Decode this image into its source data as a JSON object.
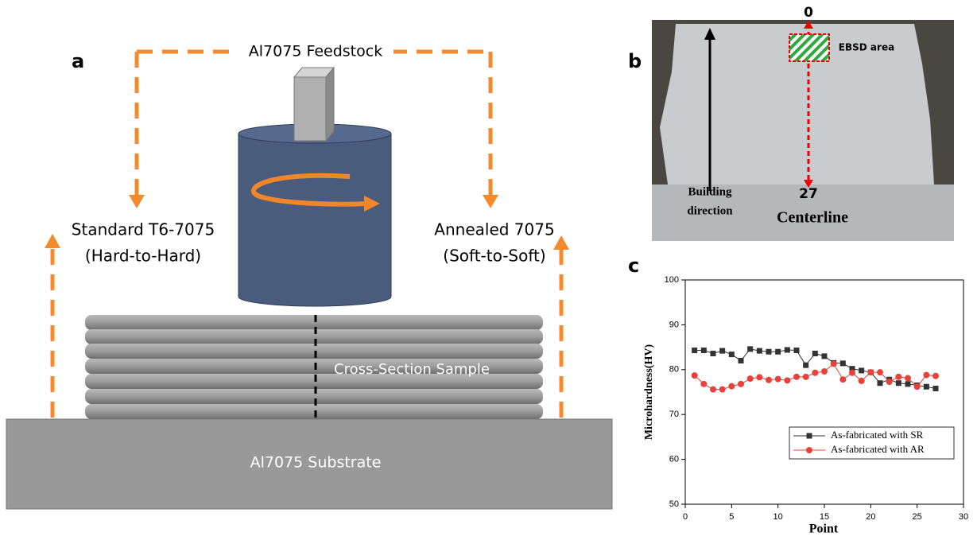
{
  "panel_a": {
    "label": "a",
    "feedstock": "Al7075 Feedstock",
    "left_label": [
      "Standard T6-7075",
      "(Hard-to-Hard)"
    ],
    "right_label": [
      "Annealed 7075",
      "(Soft-to-Soft)"
    ],
    "sample": "Cross-Section Sample",
    "substrate": "Al7075 Substrate"
  },
  "panel_b": {
    "label": "b",
    "top_mark": "0",
    "bottom_mark": "27",
    "ebsd": "EBSD area",
    "building_direction": [
      "Building",
      "direction"
    ],
    "centerline": "Centerline"
  },
  "chart_data": {
    "type": "line",
    "panel_label": "c",
    "xlabel": "Point",
    "ylabel": "Microhardness(HV)",
    "x": [
      1,
      2,
      3,
      4,
      5,
      6,
      7,
      8,
      9,
      10,
      11,
      12,
      13,
      14,
      15,
      16,
      17,
      18,
      19,
      20,
      21,
      22,
      23,
      24,
      25,
      26,
      27
    ],
    "xlim": [
      0,
      30
    ],
    "xticks": [
      0,
      5,
      10,
      15,
      20,
      25,
      30
    ],
    "ylim": [
      50,
      100
    ],
    "yticks": [
      50,
      60,
      70,
      80,
      90,
      100
    ],
    "legend": "lower right",
    "series": [
      {
        "name": "As-fabricated with SR",
        "color": "#333333",
        "marker": "square",
        "values": [
          84.3,
          84.3,
          83.6,
          84.2,
          83.4,
          82.0,
          84.6,
          84.2,
          84.0,
          84.0,
          84.4,
          84.3,
          81.0,
          83.6,
          83.0,
          81.5,
          81.4,
          80.2,
          79.8,
          79.4,
          77.0,
          77.8,
          77.0,
          76.8,
          76.5,
          76.2,
          75.8
        ]
      },
      {
        "name": "As-fabricated with AR",
        "color": "#e8413a",
        "marker": "circle",
        "values": [
          78.7,
          76.8,
          75.6,
          75.6,
          76.3,
          76.8,
          78.0,
          78.3,
          77.7,
          77.9,
          77.6,
          78.4,
          78.4,
          79.3,
          79.6,
          81.3,
          77.8,
          79.3,
          77.5,
          79.4,
          79.4,
          77.3,
          78.4,
          78.1,
          76.2,
          78.8,
          78.6
        ]
      }
    ]
  }
}
